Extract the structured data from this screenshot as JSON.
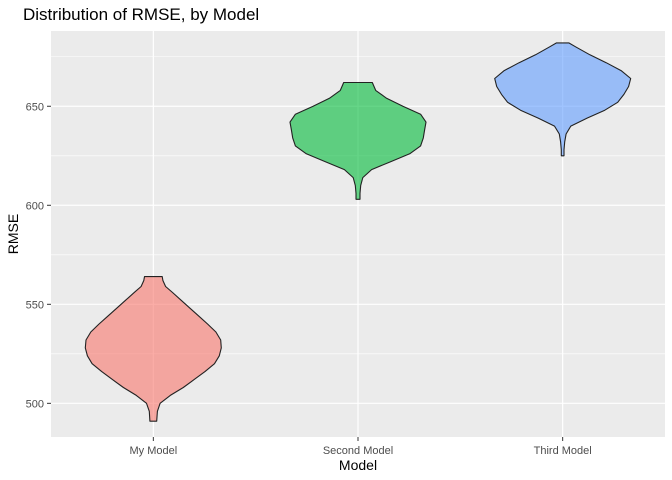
{
  "chart_data": {
    "type": "violin",
    "title": "Distribution of RMSE, by Model",
    "xlabel": "Model",
    "ylabel": "RMSE",
    "categories": [
      "My Model",
      "Second Model",
      "Third Model"
    ],
    "y_ticks": [
      500,
      550,
      600,
      650
    ],
    "ylim": [
      483,
      688
    ],
    "grid": true,
    "legend": "none",
    "colors": [
      "#F8766D",
      "#00BA38",
      "#619CFF"
    ],
    "series": [
      {
        "category": "My Model",
        "y": [
          491,
          496,
          500,
          504,
          508,
          512,
          516,
          520,
          524,
          528,
          532,
          536,
          540,
          544,
          548,
          552,
          556,
          559,
          562,
          564
        ],
        "density": [
          0.05,
          0.06,
          0.1,
          0.25,
          0.44,
          0.6,
          0.76,
          0.9,
          0.97,
          1.0,
          0.99,
          0.92,
          0.8,
          0.67,
          0.54,
          0.41,
          0.28,
          0.18,
          0.14,
          0.13
        ]
      },
      {
        "category": "Second Model",
        "y": [
          603,
          606,
          610,
          614,
          618,
          622,
          626,
          630,
          634,
          638,
          642,
          646,
          650,
          654,
          658,
          662
        ],
        "density": [
          0.03,
          0.03,
          0.04,
          0.07,
          0.2,
          0.48,
          0.76,
          0.92,
          0.96,
          0.98,
          1.0,
          0.92,
          0.66,
          0.42,
          0.26,
          0.21
        ]
      },
      {
        "category": "Third Model",
        "y": [
          625,
          628,
          632,
          636,
          640,
          644,
          648,
          652,
          656,
          660,
          664,
          668,
          672,
          676,
          680,
          682
        ],
        "density": [
          0.02,
          0.02,
          0.03,
          0.05,
          0.12,
          0.36,
          0.62,
          0.81,
          0.9,
          0.97,
          1.0,
          0.86,
          0.64,
          0.4,
          0.19,
          0.09
        ]
      }
    ]
  }
}
